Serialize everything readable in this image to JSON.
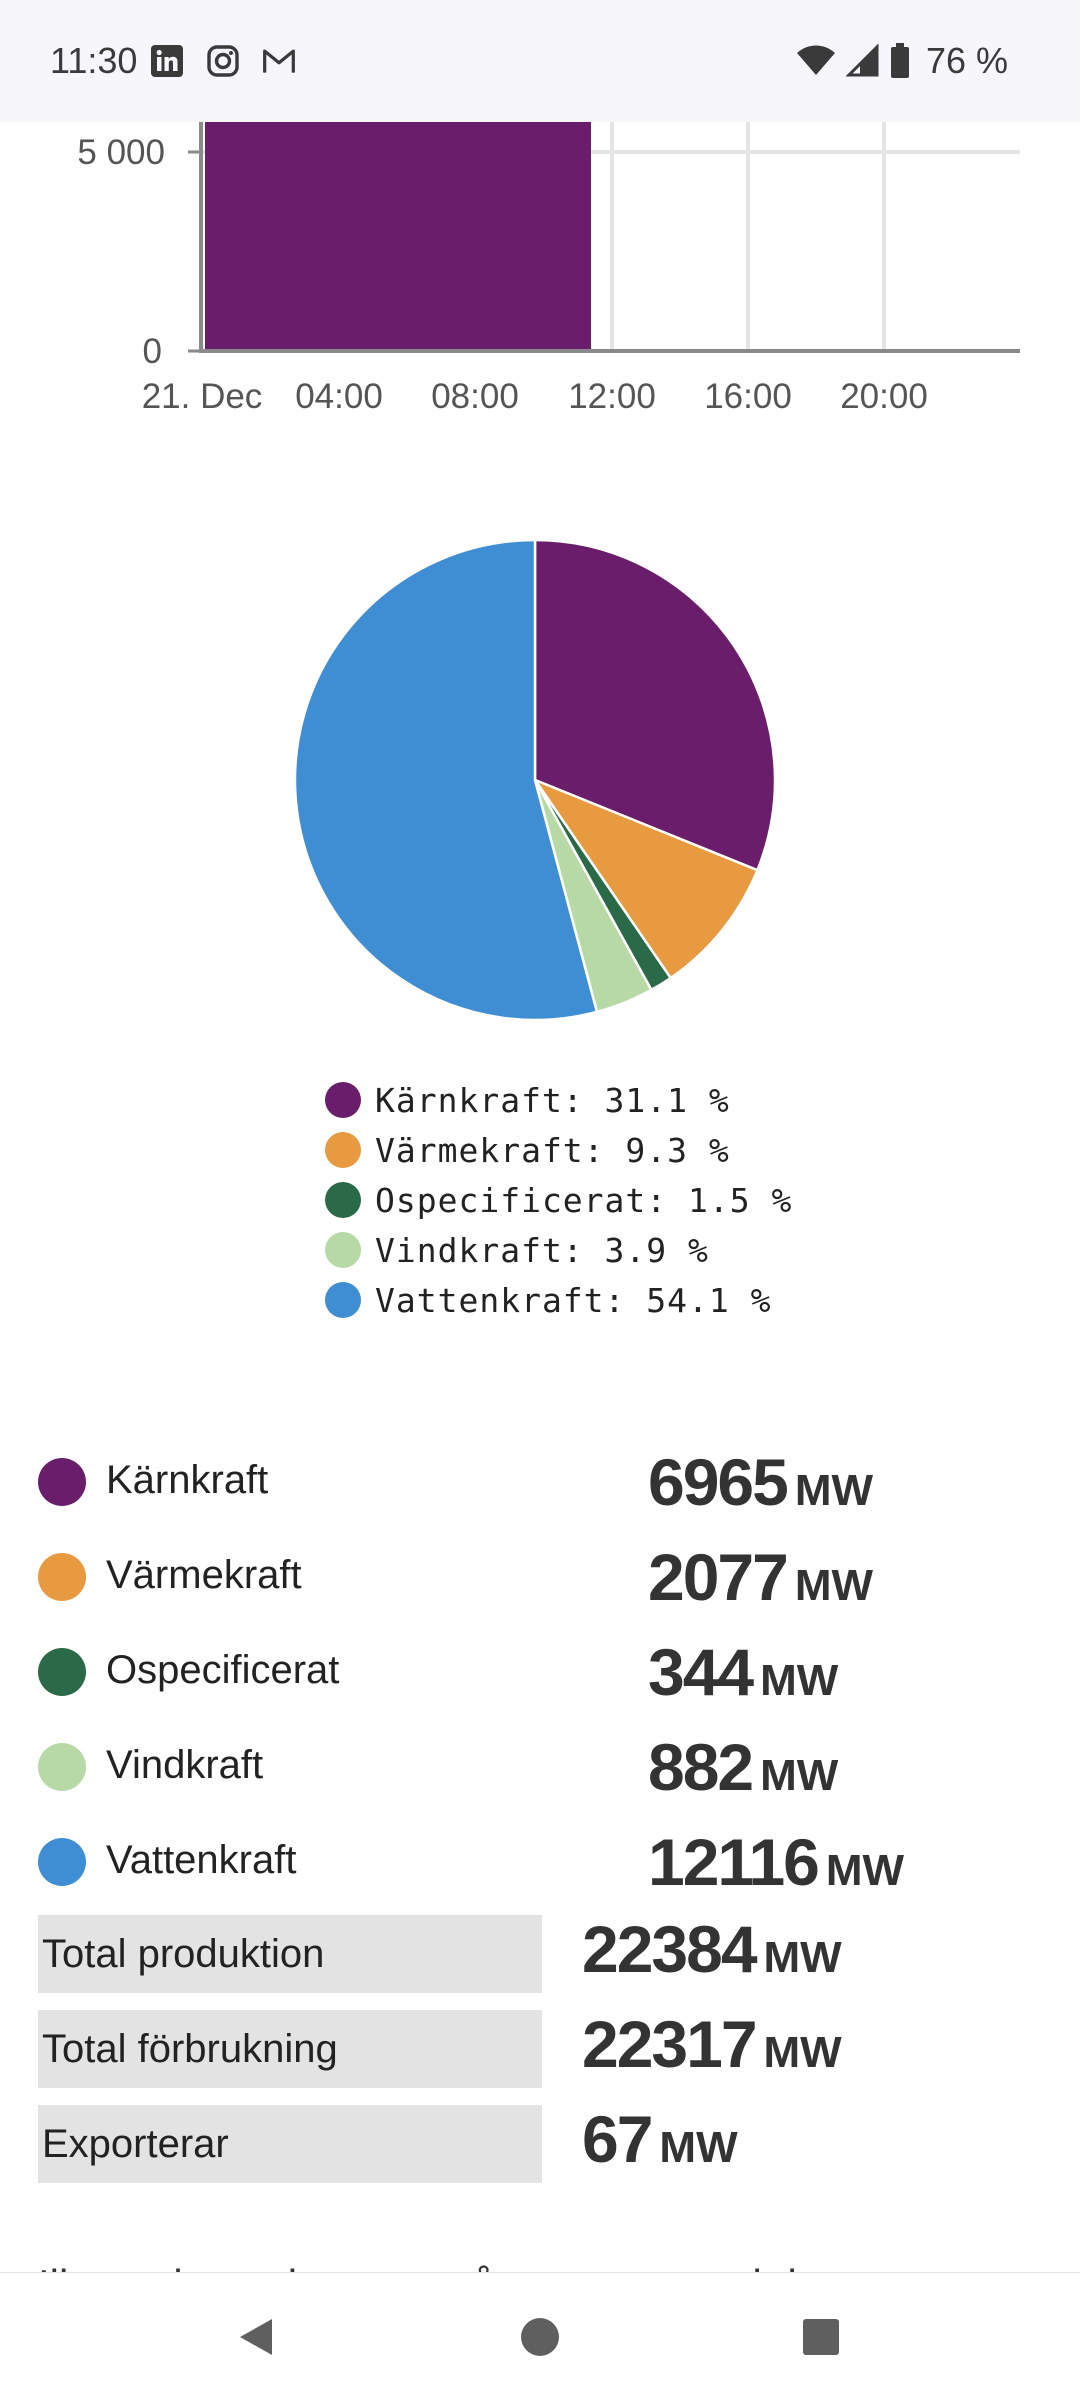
{
  "status_bar": {
    "time": "11:30",
    "battery": "76 %",
    "app_icons": [
      "linkedin-icon",
      "instagram-icon",
      "gmail-icon"
    ],
    "system_icons": [
      "wifi-icon",
      "signal-icon",
      "battery-icon"
    ]
  },
  "bar_chart": {
    "chart_data": {
      "type": "bar",
      "x_ticks": [
        "21. Dec",
        "04:00",
        "08:00",
        "12:00",
        "16:00",
        "20:00"
      ],
      "y_ticks": [
        "0",
        "5 000"
      ],
      "bar": {
        "x_start": "00:00",
        "x_end": "11:30",
        "color": "#6a1d6b"
      }
    }
  },
  "chart_data": {
    "type": "pie",
    "slices": [
      {
        "label": "Kärnkraft",
        "value": 31.1,
        "color": "#6a1d6b"
      },
      {
        "label": "Värmekraft",
        "value": 9.3,
        "color": "#e89a40"
      },
      {
        "label": "Ospecificerat",
        "value": 1.5,
        "color": "#2b6a48"
      },
      {
        "label": "Vindkraft",
        "value": 3.9,
        "color": "#b7d9a6"
      },
      {
        "label": "Vattenkraft",
        "value": 54.1,
        "color": "#3f8ed3"
      }
    ]
  },
  "legend": [
    {
      "text": "Kärnkraft: 31.1 %",
      "color": "#6a1d6b"
    },
    {
      "text": "Värmekraft: 9.3 %",
      "color": "#e89a40"
    },
    {
      "text": "Ospecificerat: 1.5 %",
      "color": "#2b6a48"
    },
    {
      "text": "Vindkraft: 3.9 %",
      "color": "#b7d9a6"
    },
    {
      "text": "Vattenkraft: 54.1 %",
      "color": "#3f8ed3"
    }
  ],
  "sources": [
    {
      "name": "Kärnkraft",
      "value": "6965",
      "unit": "MW",
      "color": "#6a1d6b"
    },
    {
      "name": "Värmekraft",
      "value": "2077",
      "unit": "MW",
      "color": "#e89a40"
    },
    {
      "name": "Ospecificerat",
      "value": "344",
      "unit": "MW",
      "color": "#2b6a48"
    },
    {
      "name": "Vindkraft",
      "value": "882",
      "unit": "MW",
      "color": "#b7d9a6"
    },
    {
      "name": "Vattenkraft",
      "value": "12116",
      "unit": "MW",
      "color": "#3f8ed3"
    }
  ],
  "totals": [
    {
      "label": "Total produktion",
      "value": "22384",
      "unit": "MW"
    },
    {
      "label": "Total förbrukning",
      "value": "22317",
      "unit": "MW"
    },
    {
      "label": "Exporterar",
      "value": "67",
      "unit": "MW"
    }
  ],
  "footnote": "Illustrationen baseras på prognoser och inte",
  "nav": {
    "icons": [
      "back-icon",
      "home-icon",
      "recents-icon"
    ]
  }
}
